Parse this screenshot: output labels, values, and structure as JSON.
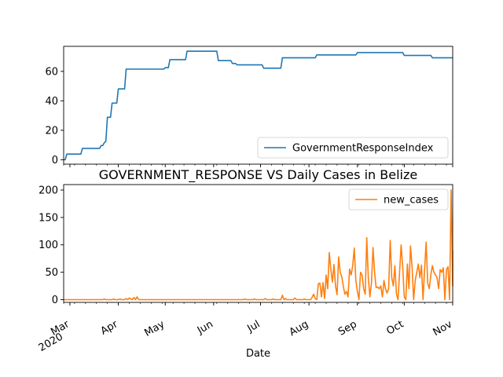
{
  "chart_data": {
    "type": "line",
    "title": "GOVERNMENT_RESPONSE VS Daily Cases in Belize",
    "xlabel": "Date",
    "x_range": [
      "2020-02-26",
      "2020-11-01"
    ],
    "x_ticks": [
      {
        "date": "2020-03-01",
        "label": "Mar",
        "sublabel": "2020"
      },
      {
        "date": "2020-04-01",
        "label": "Apr"
      },
      {
        "date": "2020-05-01",
        "label": "May"
      },
      {
        "date": "2020-06-01",
        "label": "Jun"
      },
      {
        "date": "2020-07-01",
        "label": "Jul"
      },
      {
        "date": "2020-08-01",
        "label": "Aug"
      },
      {
        "date": "2020-09-01",
        "label": "Sep"
      },
      {
        "date": "2020-10-01",
        "label": "Oct"
      },
      {
        "date": "2020-11-01",
        "label": "Nov"
      }
    ],
    "panels": [
      {
        "series": [
          {
            "name": "GovernmentResponseIndex",
            "color": "#1f77b4",
            "points": [
              [
                "2020-02-26",
                0
              ],
              [
                "2020-02-27",
                0
              ],
              [
                "2020-02-28",
                3.85
              ],
              [
                "2020-03-08",
                3.85
              ],
              [
                "2020-03-09",
                7.69
              ],
              [
                "2020-03-20",
                7.69
              ],
              [
                "2020-03-21",
                9.62
              ],
              [
                "2020-03-22",
                9.62
              ],
              [
                "2020-03-23",
                11.54
              ],
              [
                "2020-03-24",
                12.5
              ],
              [
                "2020-03-25",
                28.85
              ],
              [
                "2020-03-27",
                28.85
              ],
              [
                "2020-03-28",
                38.46
              ],
              [
                "2020-03-31",
                38.46
              ],
              [
                "2020-04-01",
                48.08
              ],
              [
                "2020-04-05",
                48.08
              ],
              [
                "2020-04-06",
                61.54
              ],
              [
                "2020-04-30",
                61.54
              ],
              [
                "2020-05-01",
                62.5
              ],
              [
                "2020-05-03",
                62.5
              ],
              [
                "2020-05-04",
                67.95
              ],
              [
                "2020-05-14",
                67.95
              ],
              [
                "2020-05-15",
                73.72
              ],
              [
                "2020-06-03",
                73.72
              ],
              [
                "2020-06-04",
                67.31
              ],
              [
                "2020-06-12",
                67.31
              ],
              [
                "2020-06-13",
                65.38
              ],
              [
                "2020-06-15",
                65.38
              ],
              [
                "2020-06-16",
                64.42
              ],
              [
                "2020-07-02",
                64.42
              ],
              [
                "2020-07-03",
                62.18
              ],
              [
                "2020-07-14",
                62.18
              ],
              [
                "2020-07-15",
                69.23
              ],
              [
                "2020-08-05",
                69.23
              ],
              [
                "2020-08-06",
                71.15
              ],
              [
                "2020-08-31",
                71.15
              ],
              [
                "2020-09-01",
                72.76
              ],
              [
                "2020-09-30",
                72.76
              ],
              [
                "2020-10-01",
                70.83
              ],
              [
                "2020-10-18",
                70.83
              ],
              [
                "2020-10-19",
                69.23
              ],
              [
                "2020-11-01",
                69.23
              ]
            ]
          }
        ],
        "ylim": [
          -3,
          77
        ],
        "y_ticks": [
          0,
          20,
          40,
          60
        ],
        "legend_loc": "lower-right"
      },
      {
        "series": [
          {
            "name": "new_cases",
            "color": "#ff7f0e",
            "points": [
              [
                "2020-02-26",
                0
              ],
              [
                "2020-03-22",
                0
              ],
              [
                "2020-03-23",
                1
              ],
              [
                "2020-03-24",
                0
              ],
              [
                "2020-03-28",
                0
              ],
              [
                "2020-03-29",
                1
              ],
              [
                "2020-03-30",
                0
              ],
              [
                "2020-04-01",
                0
              ],
              [
                "2020-04-02",
                1
              ],
              [
                "2020-04-03",
                0
              ],
              [
                "2020-04-05",
                0
              ],
              [
                "2020-04-06",
                2
              ],
              [
                "2020-04-07",
                0
              ],
              [
                "2020-04-08",
                3
              ],
              [
                "2020-04-09",
                1
              ],
              [
                "2020-04-10",
                0
              ],
              [
                "2020-04-11",
                4
              ],
              [
                "2020-04-12",
                0
              ],
              [
                "2020-04-13",
                5
              ],
              [
                "2020-04-14",
                0
              ],
              [
                "2020-06-20",
                0
              ],
              [
                "2020-06-21",
                1
              ],
              [
                "2020-06-22",
                0
              ],
              [
                "2020-06-26",
                0
              ],
              [
                "2020-06-27",
                1
              ],
              [
                "2020-06-28",
                0
              ],
              [
                "2020-07-03",
                0
              ],
              [
                "2020-07-04",
                2
              ],
              [
                "2020-07-05",
                0
              ],
              [
                "2020-07-08",
                0
              ],
              [
                "2020-07-09",
                1
              ],
              [
                "2020-07-10",
                0
              ],
              [
                "2020-07-14",
                0
              ],
              [
                "2020-07-15",
                8
              ],
              [
                "2020-07-16",
                0
              ],
              [
                "2020-07-17",
                2
              ],
              [
                "2020-07-18",
                0
              ],
              [
                "2020-07-22",
                0
              ],
              [
                "2020-07-23",
                3
              ],
              [
                "2020-07-24",
                0
              ],
              [
                "2020-07-28",
                0
              ],
              [
                "2020-07-29",
                1
              ],
              [
                "2020-07-30",
                0
              ],
              [
                "2020-08-02",
                0
              ],
              [
                "2020-08-03",
                4
              ],
              [
                "2020-08-04",
                10
              ],
              [
                "2020-08-05",
                2
              ],
              [
                "2020-08-06",
                0
              ],
              [
                "2020-08-07",
                29
              ],
              [
                "2020-08-08",
                30
              ],
              [
                "2020-08-09",
                5
              ],
              [
                "2020-08-10",
                31
              ],
              [
                "2020-08-11",
                2
              ],
              [
                "2020-08-12",
                45
              ],
              [
                "2020-08-13",
                20
              ],
              [
                "2020-08-14",
                86
              ],
              [
                "2020-08-15",
                55
              ],
              [
                "2020-08-16",
                32
              ],
              [
                "2020-08-17",
                64
              ],
              [
                "2020-08-18",
                25
              ],
              [
                "2020-08-19",
                9
              ],
              [
                "2020-08-20",
                78
              ],
              [
                "2020-08-21",
                50
              ],
              [
                "2020-08-22",
                42
              ],
              [
                "2020-08-23",
                24
              ],
              [
                "2020-08-24",
                10
              ],
              [
                "2020-08-25",
                15
              ],
              [
                "2020-08-26",
                5
              ],
              [
                "2020-08-27",
                56
              ],
              [
                "2020-08-28",
                45
              ],
              [
                "2020-08-29",
                62
              ],
              [
                "2020-08-30",
                94
              ],
              [
                "2020-08-31",
                35
              ],
              [
                "2020-09-01",
                15
              ],
              [
                "2020-09-02",
                0
              ],
              [
                "2020-09-03",
                50
              ],
              [
                "2020-09-04",
                45
              ],
              [
                "2020-09-05",
                20
              ],
              [
                "2020-09-06",
                10
              ],
              [
                "2020-09-07",
                113
              ],
              [
                "2020-09-08",
                40
              ],
              [
                "2020-09-09",
                5
              ],
              [
                "2020-09-10",
                30
              ],
              [
                "2020-09-11",
                95
              ],
              [
                "2020-09-12",
                50
              ],
              [
                "2020-09-13",
                22
              ],
              [
                "2020-09-14",
                23
              ],
              [
                "2020-09-15",
                20
              ],
              [
                "2020-09-16",
                25
              ],
              [
                "2020-09-17",
                5
              ],
              [
                "2020-09-18",
                35
              ],
              [
                "2020-09-19",
                20
              ],
              [
                "2020-09-20",
                12
              ],
              [
                "2020-09-21",
                20
              ],
              [
                "2020-09-22",
                108
              ],
              [
                "2020-09-23",
                40
              ],
              [
                "2020-09-24",
                25
              ],
              [
                "2020-09-25",
                62
              ],
              [
                "2020-09-26",
                10
              ],
              [
                "2020-09-27",
                0
              ],
              [
                "2020-09-28",
                50
              ],
              [
                "2020-09-29",
                100
              ],
              [
                "2020-09-30",
                60
              ],
              [
                "2020-10-01",
                5
              ],
              [
                "2020-10-02",
                0
              ],
              [
                "2020-10-03",
                65
              ],
              [
                "2020-10-04",
                20
              ],
              [
                "2020-10-05",
                98
              ],
              [
                "2020-10-06",
                60
              ],
              [
                "2020-10-07",
                0
              ],
              [
                "2020-10-08",
                35
              ],
              [
                "2020-10-09",
                50
              ],
              [
                "2020-10-10",
                65
              ],
              [
                "2020-10-11",
                40
              ],
              [
                "2020-10-12",
                63
              ],
              [
                "2020-10-13",
                0
              ],
              [
                "2020-10-14",
                55
              ],
              [
                "2020-10-15",
                105
              ],
              [
                "2020-10-16",
                30
              ],
              [
                "2020-10-17",
                20
              ],
              [
                "2020-10-18",
                45
              ],
              [
                "2020-10-19",
                62
              ],
              [
                "2020-10-20",
                50
              ],
              [
                "2020-10-21",
                45
              ],
              [
                "2020-10-22",
                40
              ],
              [
                "2020-10-23",
                20
              ],
              [
                "2020-10-24",
                55
              ],
              [
                "2020-10-25",
                50
              ],
              [
                "2020-10-26",
                58
              ],
              [
                "2020-10-27",
                0
              ],
              [
                "2020-10-28",
                55
              ],
              [
                "2020-10-29",
                60
              ],
              [
                "2020-10-30",
                0
              ],
              [
                "2020-10-31",
                200
              ],
              [
                "2020-11-01",
                25
              ],
              [
                "2020-11-01",
                90
              ]
            ]
          }
        ],
        "ylim": [
          -5,
          210
        ],
        "y_ticks": [
          0,
          50,
          100,
          150,
          200
        ],
        "legend_loc": "upper-right"
      }
    ]
  }
}
